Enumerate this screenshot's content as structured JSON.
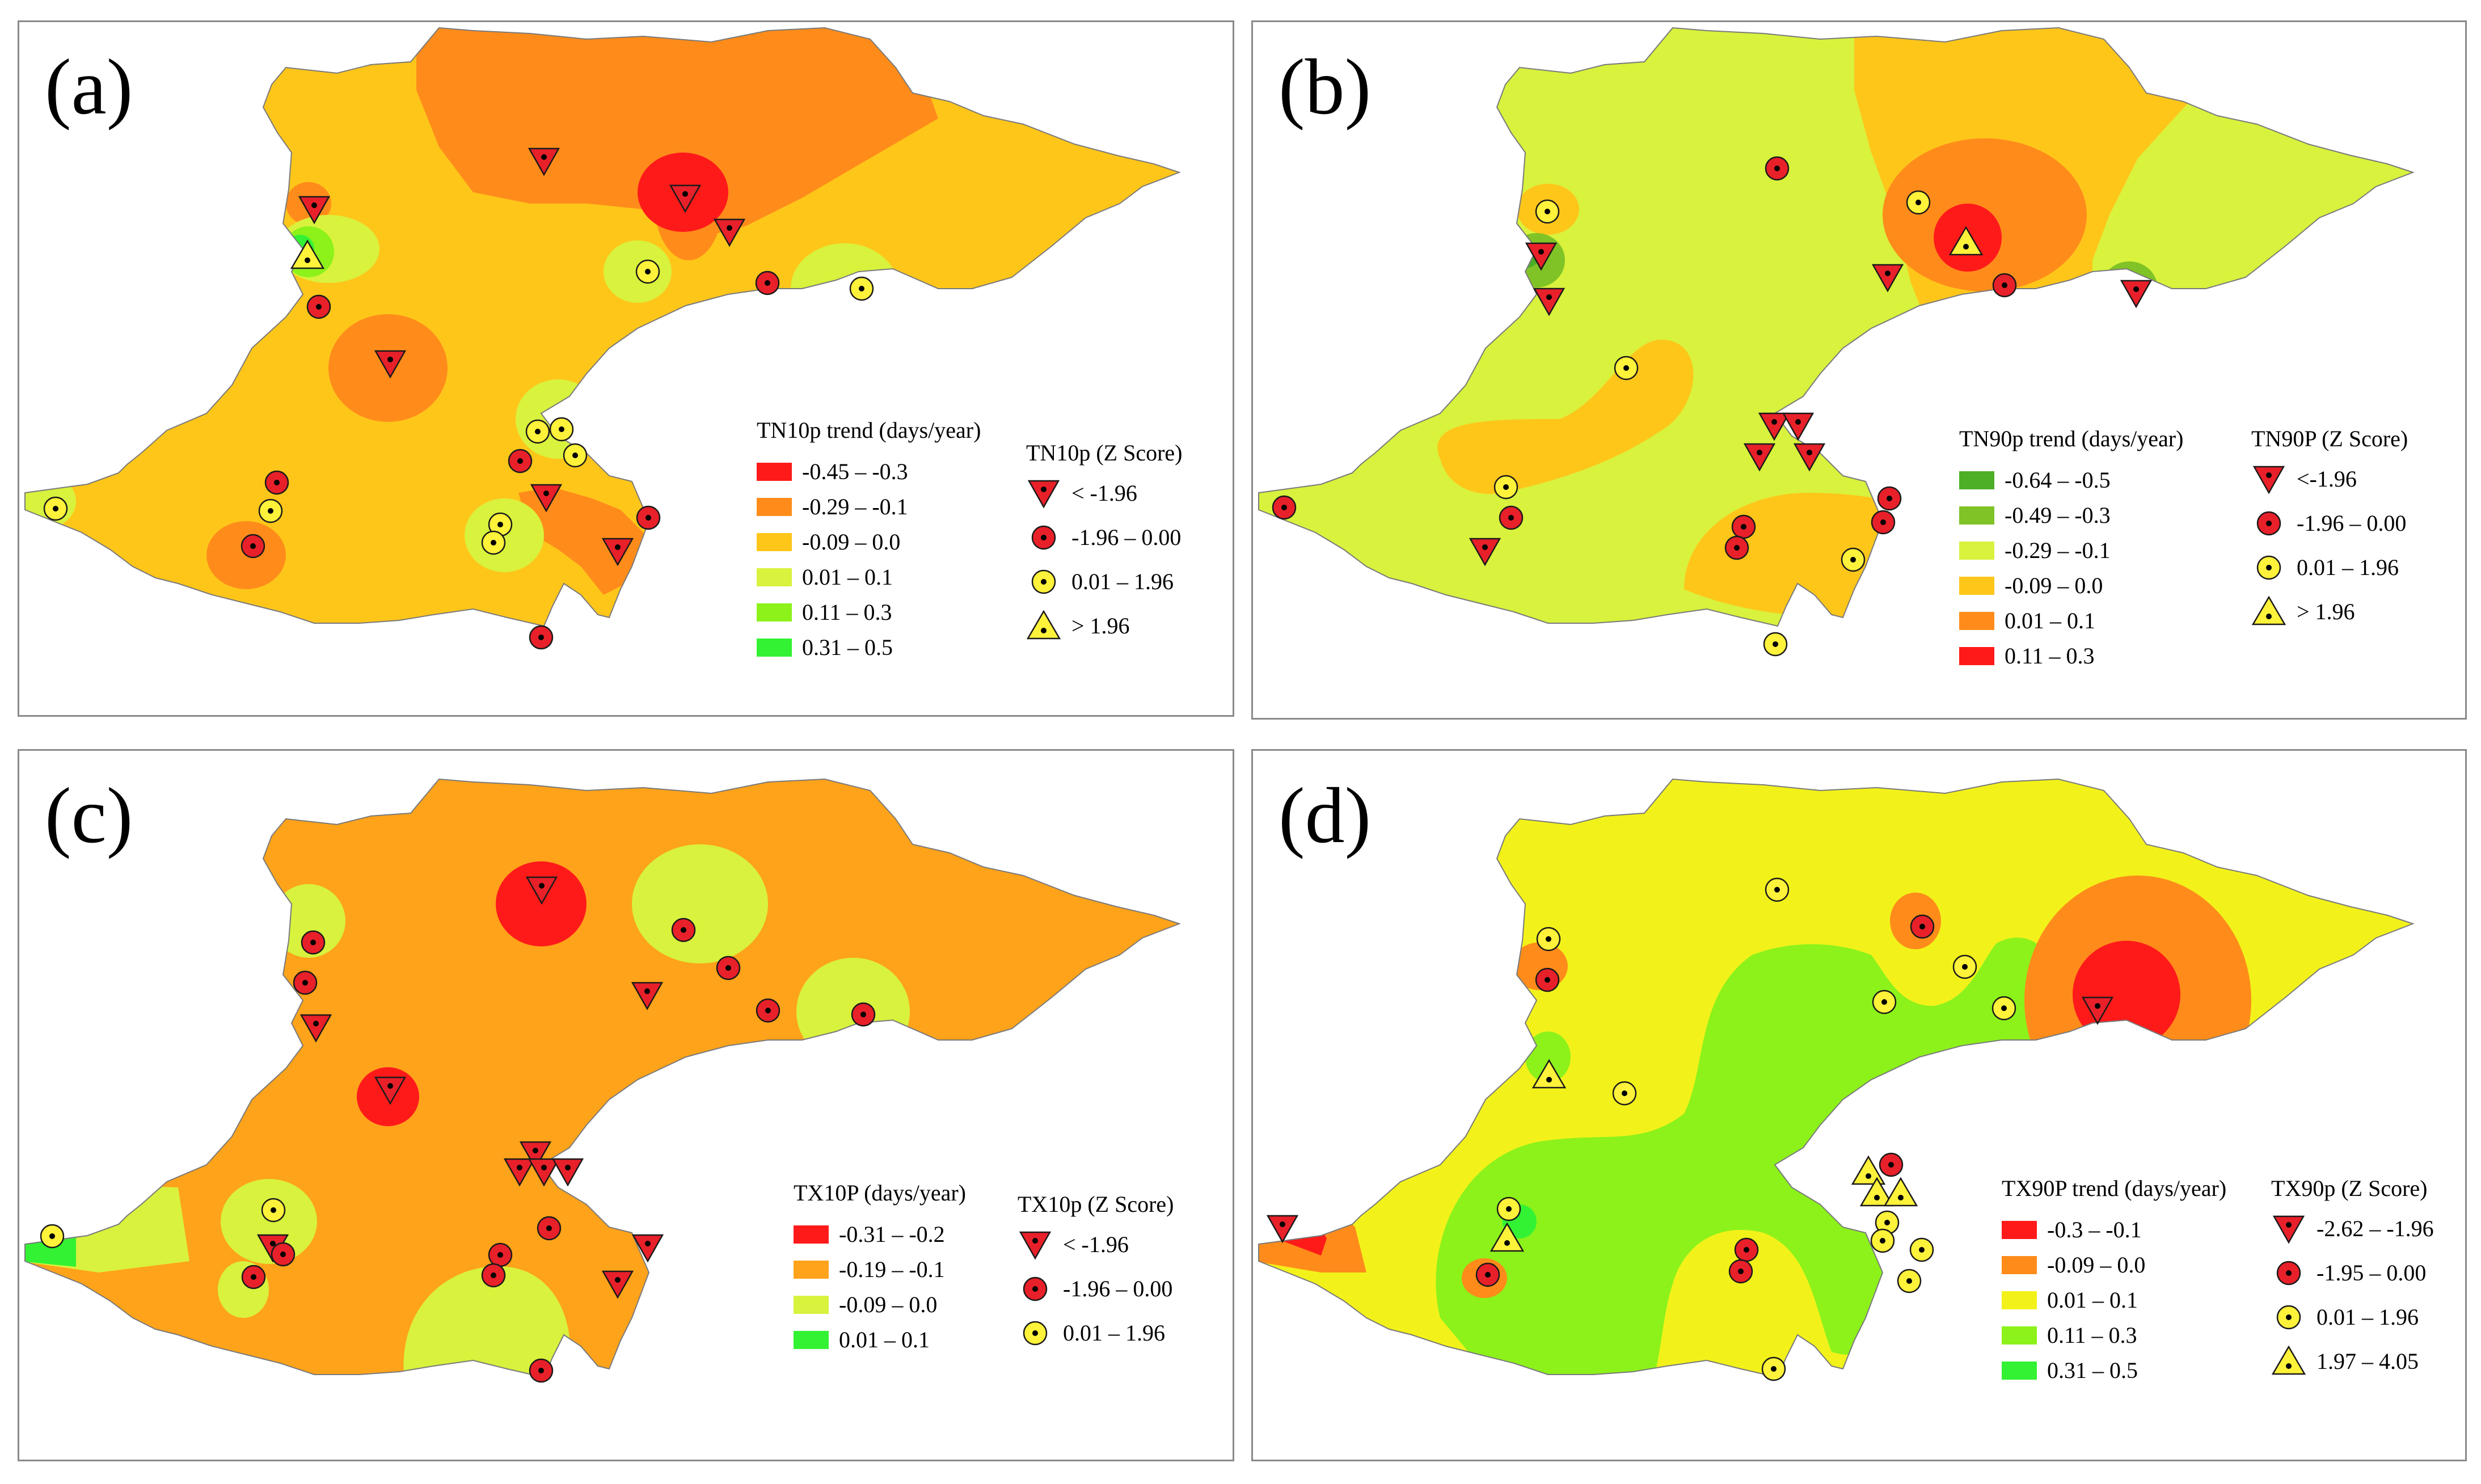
{
  "colors": {
    "c_red": "#ff1a1a",
    "c_orange": "#ff8c1a",
    "c_gold": "#ffc61a",
    "c_lime": "#d8f23d",
    "c_green_bright": "#8cf21a",
    "c_green": "#33f233",
    "c_dark_green": "#4caf26",
    "c_mid_green": "#80c326",
    "c_yellow": "#f2f21a",
    "symbol_red": "#e8202a",
    "symbol_yellow": "#fff23a"
  },
  "panels": [
    {
      "id": "a",
      "label": "(a)",
      "trend_title": "TN10p trend (days/year)",
      "trend_classes": [
        {
          "label": "-0.45 – -0.3",
          "color": "#ff1a1a"
        },
        {
          "label": "-0.29 – -0.1",
          "color": "#ff8c1a"
        },
        {
          "label": "-0.09 – 0.0",
          "color": "#ffc61a"
        },
        {
          "label": "0.01 – 0.1",
          "color": "#d8f23d"
        },
        {
          "label": "0.11 – 0.3",
          "color": "#8cf21a"
        },
        {
          "label": "0.31 – 0.5",
          "color": "#33f233"
        }
      ],
      "z_title": "TN10p (Z Score)",
      "z_classes": [
        {
          "symbol": "triangle-down",
          "label": "< -1.96"
        },
        {
          "symbol": "circle-red",
          "label": "-1.96 – 0.00"
        },
        {
          "symbol": "circle-yellow",
          "label": "0.01 – 1.96"
        },
        {
          "symbol": "triangle-up",
          "label": "> 1.96"
        }
      ]
    },
    {
      "id": "b",
      "label": "(b)",
      "trend_title": "TN90p trend (days/year)",
      "trend_classes": [
        {
          "label": "-0.64 – -0.5",
          "color": "#4caf26"
        },
        {
          "label": "-0.49 – -0.3",
          "color": "#80c326"
        },
        {
          "label": "-0.29 – -0.1",
          "color": "#d8f23d"
        },
        {
          "label": "-0.09 – 0.0",
          "color": "#ffc61a"
        },
        {
          "label": "0.01 – 0.1",
          "color": "#ff8c1a"
        },
        {
          "label": "0.11 – 0.3",
          "color": "#ff1a1a"
        }
      ],
      "z_title": "TN90P (Z Score)",
      "z_classes": [
        {
          "symbol": "triangle-down",
          "label": "<-1.96"
        },
        {
          "symbol": "circle-red",
          "label": "-1.96 – 0.00"
        },
        {
          "symbol": "circle-yellow",
          "label": "0.01 – 1.96"
        },
        {
          "symbol": "triangle-up",
          "label": "> 1.96"
        }
      ]
    },
    {
      "id": "c",
      "label": "(c)",
      "trend_title": "TX10P (days/year)",
      "trend_classes": [
        {
          "label": "-0.31 – -0.2",
          "color": "#ff1a1a"
        },
        {
          "label": "-0.19 – -0.1",
          "color": "#ffa31a"
        },
        {
          "label": "-0.09 – 0.0",
          "color": "#d8f23d"
        },
        {
          "label": "0.01 – 0.1",
          "color": "#33f233"
        }
      ],
      "z_title": "TX10p (Z Score)",
      "z_classes": [
        {
          "symbol": "triangle-down",
          "label": "< -1.96"
        },
        {
          "symbol": "circle-red",
          "label": "-1.96 – 0.00"
        },
        {
          "symbol": "circle-yellow",
          "label": "0.01 – 1.96"
        }
      ]
    },
    {
      "id": "d",
      "label": "(d)",
      "trend_title": "TX90P trend (days/year)",
      "trend_classes": [
        {
          "label": "-0.3 – -0.1",
          "color": "#ff1a1a"
        },
        {
          "label": "-0.09 – 0.0",
          "color": "#ff8c1a"
        },
        {
          "label": "0.01 – 0.1",
          "color": "#f2f21a"
        },
        {
          "label": "0.11 – 0.3",
          "color": "#8cf21a"
        },
        {
          "label": "0.31 – 0.5",
          "color": "#33f233"
        }
      ],
      "z_title": "TX90p (Z Score)",
      "z_classes": [
        {
          "symbol": "triangle-down",
          "label": "-2.62 – -1.96"
        },
        {
          "symbol": "circle-red",
          "label": "-1.95 – 0.00"
        },
        {
          "symbol": "circle-yellow",
          "label": "0.01 – 1.96"
        },
        {
          "symbol": "triangle-up",
          "label": "1.97 – 4.05"
        }
      ]
    }
  ]
}
